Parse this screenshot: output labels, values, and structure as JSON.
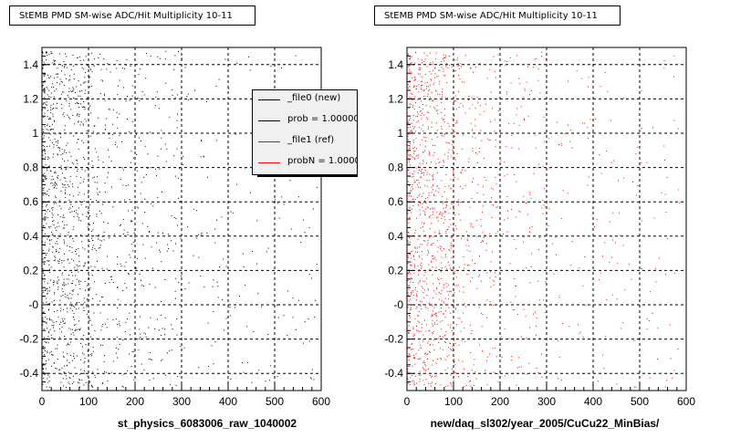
{
  "chart_data": [
    {
      "type": "scatter",
      "title": "StEMB PMD SM-wise ADC/Hit Multiplicity 10-11",
      "xlabel": "st_physics_6083006_raw_1040002",
      "ylabel": "",
      "xlim": [
        0,
        600
      ],
      "ylim": [
        -0.5,
        1.5
      ],
      "x_ticks": [
        "0",
        "100",
        "200",
        "300",
        "400",
        "500",
        "600"
      ],
      "y_ticks": [
        "-0.4",
        "-0.2",
        "-0",
        "0.2",
        "0.4",
        "0.6",
        "0.8",
        "1",
        "1.2",
        "1.4"
      ],
      "grid": true,
      "legend_position": "top-right",
      "legend": [
        {
          "label": "_file0 (new)",
          "color": "#000000"
        },
        {
          "label": "prob = 1.000000",
          "color": "#000000"
        },
        {
          "label": "_file1 (ref)",
          "color": "#ff0000"
        },
        {
          "label": "probN = 1.000000",
          "color": "#ff0000"
        }
      ],
      "series": [
        {
          "color": "#000000",
          "x": [],
          "y": []
        }
      ]
    },
    {
      "type": "scatter",
      "title": "StEMB PMD SM-wise ADC/Hit Multiplicity 10-11",
      "xlabel": "new/daq_sl302/year_2005/CuCu22_MinBias/",
      "ylabel": "",
      "xlim": [
        0,
        600
      ],
      "ylim": [
        -0.5,
        1.5
      ],
      "x_ticks": [
        "0",
        "100",
        "200",
        "300",
        "400",
        "500",
        "600"
      ],
      "y_ticks": [
        "-0.4",
        "-0.2",
        "-0",
        "0.2",
        "0.4",
        "0.6",
        "0.8",
        "1",
        "1.2",
        "1.4"
      ],
      "grid": true,
      "series": [
        {
          "color": "#ff0000",
          "x": [],
          "y": []
        }
      ]
    }
  ]
}
